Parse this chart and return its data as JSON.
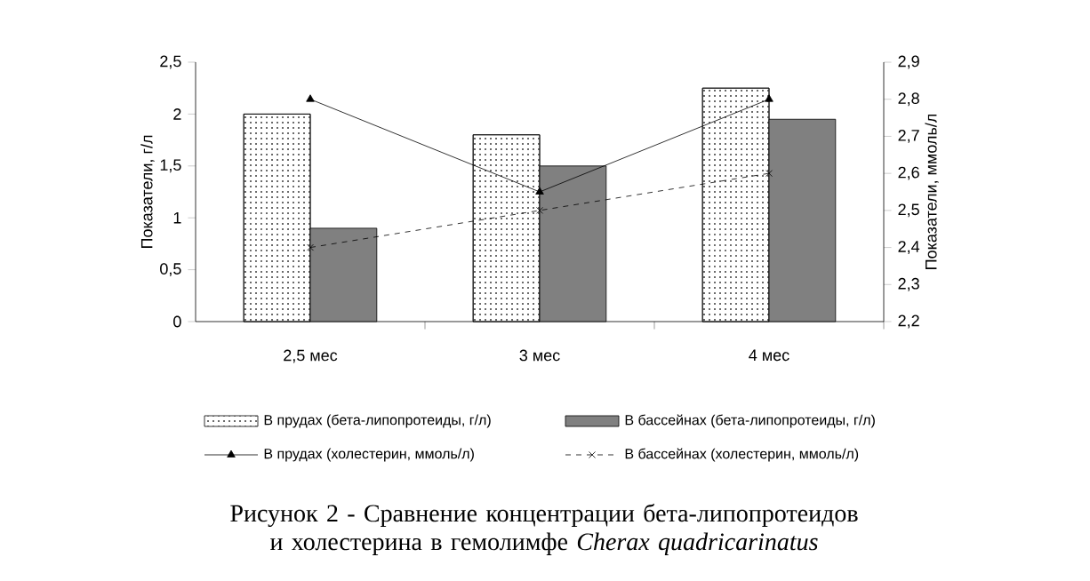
{
  "chart_data": {
    "type": "bar",
    "title": "Рисунок 2 - Сравнение концентрации бета-липопротеидов и холестерина в гемолимфе *Cherax quadricarinatus*",
    "categories": [
      "2,5 мес",
      "3 мес",
      "4 мес"
    ],
    "series": [
      {
        "name": "В прудах (бета-липопротеиды, г/л)",
        "color": "#ffffff",
        "values": [
          2.0,
          1.8,
          2.25
        ]
      },
      {
        "name": "В бассейнах (бета-липопротеиды, г/л)",
        "color": "#808080",
        "values": [
          0.9,
          1.5,
          1.95
        ]
      },
      {
        "name": "В прудах (холестерин, ммоль/л)",
        "type": "line",
        "axis": "y2",
        "color": "#000000",
        "marker": "triangle",
        "line_style": "solid",
        "values": [
          2.8,
          2.55,
          2.8
        ]
      },
      {
        "name": "В бассейнах (холестерин, ммоль/л)",
        "type": "line",
        "axis": "y2",
        "color": "#000000",
        "marker": "cross",
        "line_style": "dashed",
        "values": [
          2.4,
          2.5,
          2.6
        ]
      }
    ],
    "ylabel": "Показатели, г/л",
    "y2label": "Показатели, ммоль/л",
    "ylim": [
      0,
      2.5
    ],
    "yticks": [
      0,
      {
        "value": 0.5,
        "label": "0,5"
      },
      1,
      {
        "value": 1.5,
        "label": "1,5"
      },
      2,
      {
        "value": 2.5,
        "label": "2,5"
      }
    ],
    "y2lim": [
      2.2,
      2.9
    ],
    "y2ticks": [
      {
        "value": 2.2,
        "label": "2,2"
      },
      {
        "value": 2.3,
        "label": "2,3"
      },
      {
        "value": 2.4,
        "label": "2,4"
      },
      {
        "value": 2.5,
        "label": "2,5"
      },
      {
        "value": 2.6,
        "label": "2,6"
      },
      {
        "value": 2.7,
        "label": "2,7"
      },
      {
        "value": 2.8,
        "label": "2,8"
      },
      {
        "value": 2.9,
        "label": "2,9"
      }
    ],
    "legend": "bottom"
  }
}
